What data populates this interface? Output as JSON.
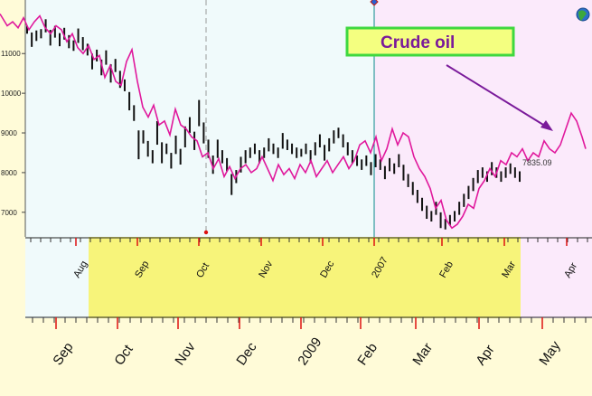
{
  "chart_data": {
    "type": "line",
    "y_axis": {
      "ticks": [
        7000,
        8000,
        9000,
        10000,
        11000
      ],
      "range": [
        6380,
        12350
      ]
    },
    "upper_axis": {
      "labels": [
        "Aug",
        "Sep",
        "Oct",
        "Nov",
        "Dec",
        "2007",
        "Feb",
        "Mar",
        "Apr"
      ]
    },
    "lower_axis": {
      "labels": [
        "Sep",
        "Oct",
        "Nov",
        "Dec",
        "2009",
        "Feb",
        "Mar",
        "Apr",
        "May"
      ]
    },
    "annotation": "Crude oil",
    "last_value_label": "7835.09",
    "series": [
      {
        "style": "bars",
        "color": "#111111",
        "values": [
          11600,
          11350,
          11450,
          11500,
          11700,
          11400,
          11550,
          11350,
          11500,
          11300,
          11200,
          11450,
          11250,
          11100,
          10800,
          10950,
          10650,
          10900,
          10500,
          10700,
          10350,
          10200,
          9800,
          9500,
          8700,
          8900,
          8600,
          8400,
          9000,
          8500,
          8600,
          8300,
          8700,
          8400,
          8900,
          9200,
          8800,
          9500,
          9000,
          8600,
          8200,
          8600,
          8400,
          8200,
          7700,
          7900,
          8200,
          8400,
          8500,
          8600,
          8400,
          8500,
          8700,
          8600,
          8500,
          8800,
          8700,
          8600,
          8500,
          8500,
          8600,
          8400,
          8600,
          8800,
          8500,
          8700,
          8900,
          9000,
          8800,
          8600,
          8400,
          8300,
          8200,
          8300,
          8100,
          8300,
          8200,
          8000,
          8200,
          8100,
          8300,
          8000,
          7800,
          7600,
          7400,
          7200,
          7000,
          6900,
          7100,
          6800,
          6700,
          6800,
          6900,
          7100,
          7300,
          7500,
          7700,
          7900,
          8000,
          7900,
          8100,
          8000,
          7900,
          8000,
          8100,
          8000,
          7900
        ]
      },
      {
        "style": "line",
        "color": "#e0189c",
        "x": [
          0,
          8,
          14,
          20,
          26,
          32,
          38,
          44,
          50,
          56,
          62,
          68,
          74,
          80,
          86,
          92,
          98,
          104,
          110,
          116,
          122,
          128,
          134,
          140,
          146,
          152,
          158,
          164,
          170,
          176,
          182,
          188,
          194,
          200,
          206,
          212,
          218,
          224,
          230,
          236,
          242,
          248,
          254,
          260,
          266,
          272,
          278,
          284,
          290,
          296,
          302,
          308,
          314,
          320,
          326,
          332,
          338,
          344,
          350,
          356,
          362,
          368,
          374,
          380,
          386,
          392,
          398,
          404,
          410,
          416,
          422,
          428,
          434,
          440,
          446,
          452,
          458,
          464,
          470,
          476,
          482,
          488,
          494,
          500,
          506,
          512,
          518,
          524,
          530,
          536,
          542,
          548,
          554,
          560,
          566,
          572,
          578,
          584,
          590,
          596,
          602,
          608,
          614,
          620,
          626,
          632,
          638,
          644,
          648
        ],
        "values": [
          12000,
          11700,
          11800,
          11650,
          11900,
          11600,
          11800,
          11950,
          11650,
          11500,
          11700,
          11600,
          11300,
          11500,
          11150,
          11000,
          11200,
          10850,
          10950,
          10400,
          10700,
          10300,
          10200,
          10800,
          11100,
          10300,
          9650,
          9400,
          9700,
          9200,
          9300,
          8950,
          9600,
          9200,
          9100,
          8900,
          8800,
          8400,
          8500,
          8100,
          8350,
          7900,
          8150,
          7850,
          8100,
          8200,
          8000,
          8100,
          8400,
          8100,
          7800,
          8200,
          7950,
          8100,
          7850,
          8200,
          8000,
          8300,
          7900,
          8100,
          8300,
          8000,
          8200,
          8400,
          8100,
          8300,
          8700,
          8800,
          8500,
          8900,
          8300,
          8600,
          9100,
          8700,
          9000,
          8900,
          8400,
          8100,
          7900,
          7600,
          7100,
          7300,
          6800,
          6600,
          6700,
          6900,
          7200,
          7100,
          7600,
          7800,
          8100,
          7900,
          8300,
          8200,
          8500,
          8400,
          8600,
          8300,
          8500,
          8400,
          8800,
          8600,
          8500,
          8700,
          9100,
          9500,
          9300,
          8900,
          8600
        ]
      }
    ]
  }
}
